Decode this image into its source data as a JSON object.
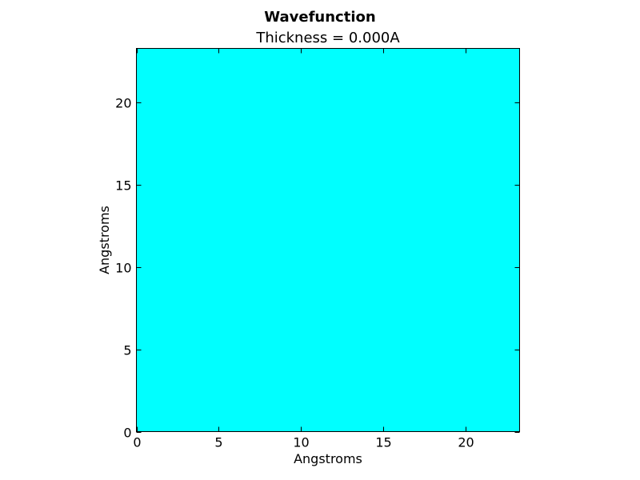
{
  "chart_data": {
    "type": "heatmap",
    "suptitle": "Wavefunction",
    "title": "Thickness = 0.000A",
    "xlabel": "Angstroms",
    "ylabel": "Angstroms",
    "xlim": [
      0,
      23.3
    ],
    "ylim": [
      0,
      23.3
    ],
    "xticks": [
      0,
      5,
      10,
      15,
      20
    ],
    "yticks": [
      0,
      5,
      10,
      15,
      20
    ],
    "xtick_labels": [
      "0",
      "5",
      "10",
      "15",
      "20"
    ],
    "ytick_labels": [
      "0",
      "5",
      "10",
      "15",
      "20"
    ],
    "fill_color": "#00ffff",
    "grid": false,
    "colormap_value": "uniform"
  }
}
